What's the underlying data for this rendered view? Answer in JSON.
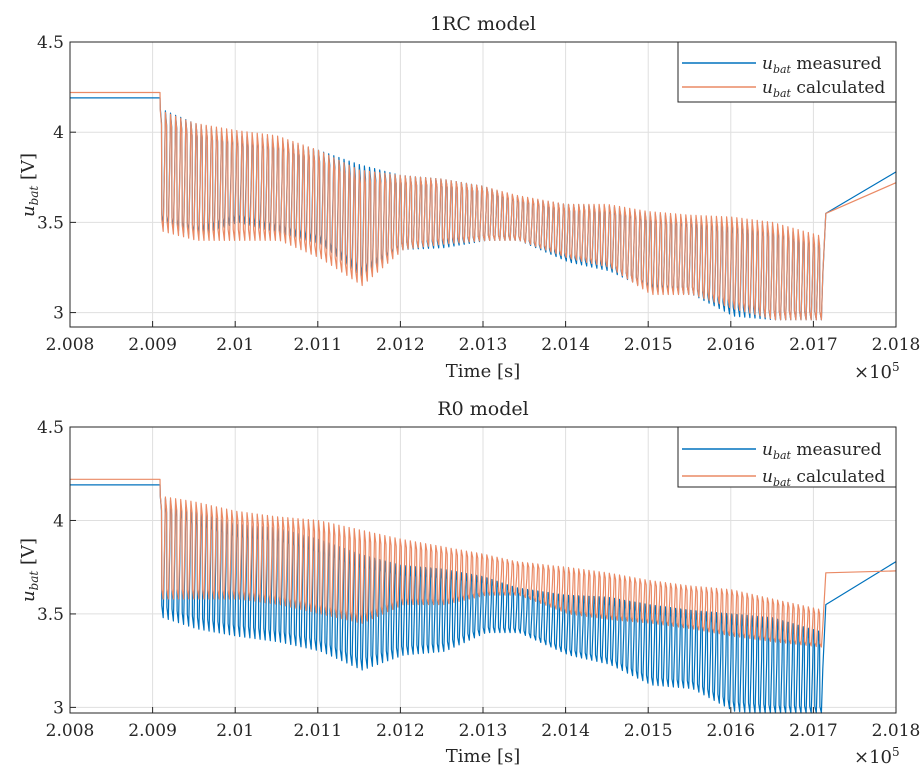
{
  "chart_data": [
    {
      "type": "line",
      "title": "1RC model",
      "xlabel": "Time [s]",
      "ylabel": "u_bat [V]",
      "xlabel_multiplier": "×10^5",
      "xlim": [
        2.008,
        2.018
      ],
      "ylim": [
        2.92,
        4.5
      ],
      "xticks": [
        2.008,
        2.009,
        2.01,
        2.011,
        2.012,
        2.013,
        2.014,
        2.015,
        2.016,
        2.017,
        2.018
      ],
      "xtick_labels": [
        "2.008",
        "2.009",
        "2.01",
        "2.011",
        "2.012",
        "2.013",
        "2.014",
        "2.015",
        "2.016",
        "2.017",
        "2.018"
      ],
      "yticks": [
        3,
        3.5,
        4,
        4.5
      ],
      "ytick_labels": [
        "3",
        "3.5",
        "4",
        "4.5"
      ],
      "grid": true,
      "legend_position": "top-right",
      "series": [
        {
          "name": "u_bat measured",
          "color": "#0072BD",
          "style": "pulsed",
          "x": [
            2.008,
            2.00909,
            2.0095,
            2.01,
            2.0105,
            2.011,
            2.0115,
            2.012,
            2.0125,
            2.013,
            2.0134,
            2.014,
            2.0145,
            2.015,
            2.0155,
            2.016,
            2.0165,
            2.01712,
            2.01715,
            2.018
          ],
          "high": [
            4.19,
            4.13,
            4.05,
            3.98,
            3.96,
            3.9,
            3.82,
            3.76,
            3.74,
            3.7,
            3.64,
            3.6,
            3.59,
            3.55,
            3.52,
            3.5,
            3.48,
            3.4,
            3.55,
            3.78
          ],
          "low": [
            4.19,
            3.48,
            3.42,
            3.5,
            3.44,
            3.38,
            3.2,
            3.35,
            3.36,
            3.4,
            3.4,
            3.28,
            3.23,
            3.12,
            3.1,
            2.98,
            2.96,
            2.96,
            3.55,
            3.78
          ]
        },
        {
          "name": "u_bat calculated",
          "color": "#EA8A65",
          "style": "pulsed",
          "x": [
            2.008,
            2.00909,
            2.0095,
            2.01,
            2.0105,
            2.011,
            2.0115,
            2.012,
            2.0125,
            2.013,
            2.0134,
            2.014,
            2.0145,
            2.015,
            2.0155,
            2.016,
            2.0165,
            2.01712,
            2.01715,
            2.018
          ],
          "high": [
            4.22,
            4.12,
            4.05,
            4.01,
            3.98,
            3.9,
            3.79,
            3.76,
            3.74,
            3.7,
            3.65,
            3.6,
            3.6,
            3.56,
            3.54,
            3.53,
            3.5,
            3.42,
            3.55,
            3.72
          ],
          "low": [
            4.22,
            3.45,
            3.4,
            3.4,
            3.4,
            3.3,
            3.15,
            3.35,
            3.38,
            3.4,
            3.4,
            3.3,
            3.25,
            3.1,
            3.1,
            3.02,
            2.96,
            2.96,
            3.55,
            3.72
          ]
        }
      ]
    },
    {
      "type": "line",
      "title": "R0 model",
      "xlabel": "Time [s]",
      "ylabel": "u_bat [V]",
      "xlabel_multiplier": "×10^5",
      "xlim": [
        2.008,
        2.018
      ],
      "ylim": [
        2.97,
        4.5
      ],
      "xticks": [
        2.008,
        2.009,
        2.01,
        2.011,
        2.012,
        2.013,
        2.014,
        2.015,
        2.016,
        2.017,
        2.018
      ],
      "xtick_labels": [
        "2.008",
        "2.009",
        "2.01",
        "2.011",
        "2.012",
        "2.013",
        "2.014",
        "2.015",
        "2.016",
        "2.017",
        "2.018"
      ],
      "yticks": [
        3,
        3.5,
        4,
        4.5
      ],
      "ytick_labels": [
        "3",
        "3.5",
        "4",
        "4.5"
      ],
      "grid": true,
      "legend_position": "top-right",
      "series": [
        {
          "name": "u_bat measured",
          "color": "#0072BD",
          "style": "pulsed",
          "x": [
            2.008,
            2.00909,
            2.0095,
            2.01,
            2.0105,
            2.011,
            2.0115,
            2.012,
            2.0125,
            2.013,
            2.0134,
            2.014,
            2.0145,
            2.015,
            2.0155,
            2.016,
            2.0165,
            2.01712,
            2.01715,
            2.018
          ],
          "high": [
            4.19,
            4.13,
            4.05,
            3.98,
            3.96,
            3.9,
            3.82,
            3.76,
            3.74,
            3.7,
            3.64,
            3.6,
            3.59,
            3.55,
            3.52,
            3.5,
            3.48,
            3.4,
            3.55,
            3.78
          ],
          "low": [
            4.19,
            3.48,
            3.42,
            3.38,
            3.35,
            3.3,
            3.2,
            3.28,
            3.3,
            3.4,
            3.4,
            3.28,
            3.23,
            3.12,
            3.1,
            2.98,
            2.96,
            2.96,
            3.55,
            3.78
          ]
        },
        {
          "name": "u_bat calculated",
          "color": "#EA8A65",
          "style": "pulsed",
          "x": [
            2.008,
            2.00909,
            2.0095,
            2.01,
            2.0105,
            2.011,
            2.0115,
            2.012,
            2.0125,
            2.013,
            2.0134,
            2.014,
            2.0145,
            2.015,
            2.0155,
            2.016,
            2.0165,
            2.01712,
            2.01715,
            2.018
          ],
          "high": [
            4.22,
            4.13,
            4.1,
            4.05,
            4.02,
            4.0,
            3.95,
            3.9,
            3.86,
            3.82,
            3.78,
            3.75,
            3.72,
            3.68,
            3.65,
            3.63,
            3.58,
            3.52,
            3.72,
            3.73
          ],
          "low": [
            4.22,
            3.58,
            3.58,
            3.58,
            3.55,
            3.5,
            3.45,
            3.55,
            3.55,
            3.6,
            3.6,
            3.5,
            3.47,
            3.45,
            3.42,
            3.38,
            3.35,
            3.32,
            3.72,
            3.73
          ]
        }
      ]
    }
  ]
}
